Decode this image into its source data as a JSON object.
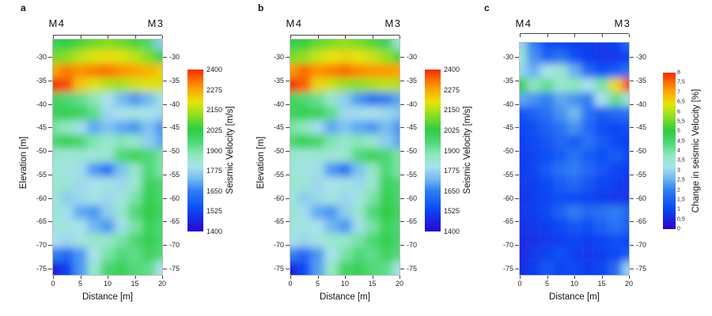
{
  "figure": {
    "panels": [
      {
        "letter": "a",
        "top_left_label": "M4",
        "top_right_label": "M3",
        "xlabel": "Distance [m]",
        "ylabel": "Elevation [m]",
        "x_ticks": [
          "0",
          "5",
          "10",
          "15",
          "20"
        ],
        "y_ticks": [
          "-30",
          "-35",
          "-40",
          "-45",
          "-50",
          "-55",
          "-60",
          "-65",
          "-70",
          "-75"
        ],
        "colorbar": {
          "label": "Seismic Velocity [m/s]",
          "ticks": [
            "2400",
            "2275",
            "2150",
            "2025",
            "1900",
            "1775",
            "1650",
            "1525",
            "1400"
          ]
        }
      },
      {
        "letter": "b",
        "top_left_label": "M4",
        "top_right_label": "M3",
        "xlabel": "Distance [m]",
        "ylabel": "Elevation [m]",
        "x_ticks": [
          "0",
          "5",
          "10",
          "15",
          "20"
        ],
        "y_ticks": [
          "-30",
          "-35",
          "-40",
          "-45",
          "-50",
          "-55",
          "-60",
          "-65",
          "-70",
          "-75"
        ],
        "colorbar": {
          "label": "Seismic Velocity [m/s]",
          "ticks": [
            "2400",
            "2275",
            "2150",
            "2025",
            "1900",
            "1775",
            "1650",
            "1525",
            "1400"
          ]
        }
      },
      {
        "letter": "c",
        "top_left_label": "M4",
        "top_right_label": "M3",
        "xlabel": "Distance [m]",
        "y_ticks": [
          "-30",
          "-35",
          "-40",
          "-45",
          "-50",
          "-55",
          "-60",
          "-65",
          "-70",
          "-75"
        ],
        "x_ticks": [
          "0",
          "5",
          "10",
          "15",
          "20"
        ],
        "colorbar": {
          "label": "Change in seismic Velocity [%]",
          "ticks": [
            "8",
            "7,5",
            "7",
            "6,5",
            "6",
            "5,5",
            "5",
            "4,5",
            "4",
            "3,5",
            "3",
            "2,5",
            "2",
            "1,5",
            "1",
            "0,5",
            "0"
          ]
        }
      }
    ]
  },
  "colormap": {
    "stops": [
      [
        0.0,
        "#2a06c8"
      ],
      [
        0.13,
        "#0b46f5"
      ],
      [
        0.25,
        "#2f7ef2"
      ],
      [
        0.32,
        "#6fb7f0"
      ],
      [
        0.4,
        "#a9e2ec"
      ],
      [
        0.47,
        "#90e8c0"
      ],
      [
        0.55,
        "#4fd878"
      ],
      [
        0.63,
        "#2ecc44"
      ],
      [
        0.72,
        "#8fdf20"
      ],
      [
        0.8,
        "#e8e409"
      ],
      [
        0.88,
        "#fca305"
      ],
      [
        0.94,
        "#fb6a04"
      ],
      [
        1.0,
        "#f22a05"
      ]
    ]
  },
  "chart_data": [
    {
      "type": "heatmap",
      "panel": "a",
      "quantity": "Seismic Velocity [m/s]",
      "xlabel": "Distance [m]",
      "ylabel": "Elevation [m]",
      "xlim": [
        0,
        20
      ],
      "ylim": [
        -76,
        -26
      ],
      "vmin": 1400,
      "vmax": 2400,
      "x_m": [
        0,
        2.5,
        5,
        7.5,
        10,
        12.5,
        15,
        17.5,
        20
      ],
      "elevation_m": [
        -27,
        -30,
        -33,
        -36,
        -39,
        -42,
        -45,
        -48,
        -51,
        -54,
        -57,
        -60,
        -63,
        -66,
        -69,
        -72,
        -75
      ],
      "values": [
        [
          2000,
          2030,
          2060,
          2090,
          2110,
          2090,
          2060,
          1960,
          1760
        ],
        [
          2090,
          2110,
          2160,
          2190,
          2210,
          2190,
          2160,
          2110,
          2010
        ],
        [
          2280,
          2320,
          2300,
          2320,
          2330,
          2300,
          2280,
          2260,
          2230
        ],
        [
          2430,
          2370,
          2240,
          2190,
          2150,
          2140,
          2170,
          2190,
          2180
        ],
        [
          1990,
          1960,
          1930,
          1880,
          1800,
          1730,
          1680,
          1720,
          1820
        ],
        [
          1990,
          2010,
          2000,
          1930,
          1780,
          1800,
          1820,
          1800,
          1780
        ],
        [
          1900,
          1870,
          1790,
          1700,
          1740,
          1700,
          1680,
          1740,
          1680
        ],
        [
          1960,
          2010,
          1970,
          1890,
          1850,
          1880,
          1850,
          1760,
          1700
        ],
        [
          1850,
          1830,
          1850,
          1830,
          1850,
          1950,
          2000,
          1960,
          1900
        ],
        [
          1830,
          1820,
          1790,
          1680,
          1620,
          1740,
          1860,
          1950,
          1900
        ],
        [
          1850,
          1840,
          1780,
          1800,
          1820,
          1780,
          1840,
          2000,
          1960
        ],
        [
          1830,
          1760,
          1780,
          1820,
          1780,
          1820,
          1900,
          2010,
          1970
        ],
        [
          1850,
          1790,
          1700,
          1680,
          1760,
          1850,
          1950,
          2030,
          1990
        ],
        [
          1830,
          1820,
          1800,
          1720,
          1680,
          1790,
          1900,
          2000,
          1960
        ],
        [
          1800,
          1780,
          1820,
          1850,
          1850,
          1900,
          1960,
          2010,
          1970
        ],
        [
          1650,
          1600,
          1680,
          1800,
          1900,
          1950,
          1930,
          1990,
          1950
        ],
        [
          1440,
          1520,
          1680,
          1850,
          1970,
          2000,
          1950,
          1930,
          1800
        ]
      ]
    },
    {
      "type": "heatmap",
      "panel": "b",
      "quantity": "Seismic Velocity [m/s]",
      "xlabel": "Distance [m]",
      "ylabel": "Elevation [m]",
      "xlim": [
        0,
        20
      ],
      "ylim": [
        -76,
        -26
      ],
      "vmin": 1400,
      "vmax": 2400,
      "x_m": [
        0,
        2.5,
        5,
        7.5,
        10,
        12.5,
        15,
        17.5,
        20
      ],
      "elevation_m": [
        -27,
        -30,
        -33,
        -36,
        -39,
        -42,
        -45,
        -48,
        -51,
        -54,
        -57,
        -60,
        -63,
        -66,
        -69,
        -72,
        -75
      ],
      "values": [
        [
          2010,
          2040,
          2080,
          2100,
          2120,
          2100,
          2070,
          1990,
          1850
        ],
        [
          2100,
          2120,
          2170,
          2200,
          2220,
          2200,
          2170,
          2130,
          2060
        ],
        [
          2290,
          2340,
          2300,
          2320,
          2340,
          2310,
          2290,
          2290,
          2280
        ],
        [
          2430,
          2350,
          2220,
          2170,
          2130,
          2120,
          2140,
          2160,
          2150
        ],
        [
          1990,
          1960,
          1920,
          1850,
          1760,
          1680,
          1620,
          1650,
          1700
        ],
        [
          1990,
          2010,
          2000,
          1930,
          1780,
          1790,
          1800,
          1780,
          1750
        ],
        [
          1900,
          1870,
          1790,
          1700,
          1740,
          1700,
          1680,
          1730,
          1680
        ],
        [
          1960,
          2010,
          1970,
          1890,
          1850,
          1880,
          1850,
          1760,
          1700
        ],
        [
          1850,
          1830,
          1850,
          1830,
          1850,
          1950,
          2000,
          1960,
          1900
        ],
        [
          1830,
          1820,
          1790,
          1680,
          1620,
          1740,
          1860,
          1950,
          1900
        ],
        [
          1850,
          1840,
          1780,
          1800,
          1820,
          1780,
          1840,
          2000,
          1960
        ],
        [
          1830,
          1760,
          1780,
          1820,
          1780,
          1820,
          1900,
          2010,
          1970
        ],
        [
          1850,
          1790,
          1700,
          1680,
          1760,
          1850,
          1950,
          2030,
          1990
        ],
        [
          1830,
          1820,
          1800,
          1720,
          1680,
          1790,
          1900,
          2000,
          1960
        ],
        [
          1800,
          1780,
          1820,
          1850,
          1850,
          1900,
          1960,
          2010,
          1970
        ],
        [
          1650,
          1600,
          1680,
          1800,
          1900,
          1950,
          1930,
          1990,
          1950
        ],
        [
          1450,
          1530,
          1690,
          1860,
          1980,
          2000,
          1950,
          1930,
          1810
        ]
      ]
    },
    {
      "type": "heatmap",
      "panel": "c",
      "quantity": "Change in seismic Velocity [%]",
      "xlabel": "Distance [m]",
      "xlim": [
        0,
        20
      ],
      "ylim": [
        -76,
        -27
      ],
      "vmin": 0,
      "vmax": 8,
      "x_m": [
        0,
        2.5,
        5,
        7.5,
        10,
        12.5,
        15,
        17.5,
        20
      ],
      "elevation_m": [
        -27,
        -30,
        -33,
        -36,
        -39,
        -42,
        -45,
        -48,
        -51,
        -54,
        -57,
        -60,
        -63,
        -66,
        -69,
        -72,
        -75
      ],
      "values": [
        [
          3.0,
          2.0,
          1.2,
          1.0,
          0.9,
          0.9,
          0.8,
          0.9,
          1.6
        ],
        [
          3.5,
          2.2,
          1.5,
          1.8,
          1.2,
          0.9,
          0.8,
          0.8,
          1.0
        ],
        [
          3.0,
          2.5,
          3.2,
          3.5,
          2.5,
          1.6,
          1.2,
          1.4,
          1.8
        ],
        [
          5.0,
          3.8,
          4.2,
          3.6,
          3.8,
          3.2,
          4.0,
          6.5,
          7.8
        ],
        [
          2.4,
          2.2,
          2.0,
          2.4,
          2.2,
          2.0,
          3.2,
          4.2,
          3.6
        ],
        [
          1.2,
          1.5,
          1.8,
          2.2,
          2.6,
          1.8,
          1.4,
          1.6,
          1.8
        ],
        [
          1.0,
          1.2,
          1.5,
          1.8,
          2.2,
          1.6,
          1.2,
          1.0,
          1.2
        ],
        [
          0.9,
          1.1,
          1.3,
          1.6,
          1.4,
          1.8,
          1.4,
          1.1,
          0.9
        ],
        [
          0.8,
          1.0,
          1.2,
          1.4,
          1.8,
          1.4,
          1.2,
          1.4,
          1.1
        ],
        [
          0.9,
          1.0,
          1.4,
          1.8,
          2.0,
          1.6,
          1.3,
          1.0,
          0.9
        ],
        [
          0.8,
          0.9,
          1.1,
          1.4,
          1.6,
          1.3,
          1.0,
          0.9,
          0.8
        ],
        [
          0.7,
          0.9,
          1.0,
          1.2,
          1.1,
          1.0,
          0.9,
          0.8,
          0.8
        ],
        [
          0.8,
          0.9,
          1.1,
          1.5,
          2.0,
          1.6,
          1.8,
          2.0,
          1.6
        ],
        [
          0.7,
          0.8,
          0.9,
          1.1,
          1.3,
          1.2,
          1.5,
          1.8,
          1.5
        ],
        [
          0.6,
          0.7,
          0.8,
          0.9,
          1.0,
          0.9,
          1.0,
          1.2,
          1.0
        ],
        [
          0.5,
          0.8,
          1.0,
          1.2,
          0.9,
          0.8,
          0.9,
          1.1,
          1.4
        ],
        [
          0.6,
          0.9,
          1.3,
          1.0,
          1.1,
          0.9,
          1.0,
          1.6,
          3.0
        ]
      ]
    }
  ]
}
